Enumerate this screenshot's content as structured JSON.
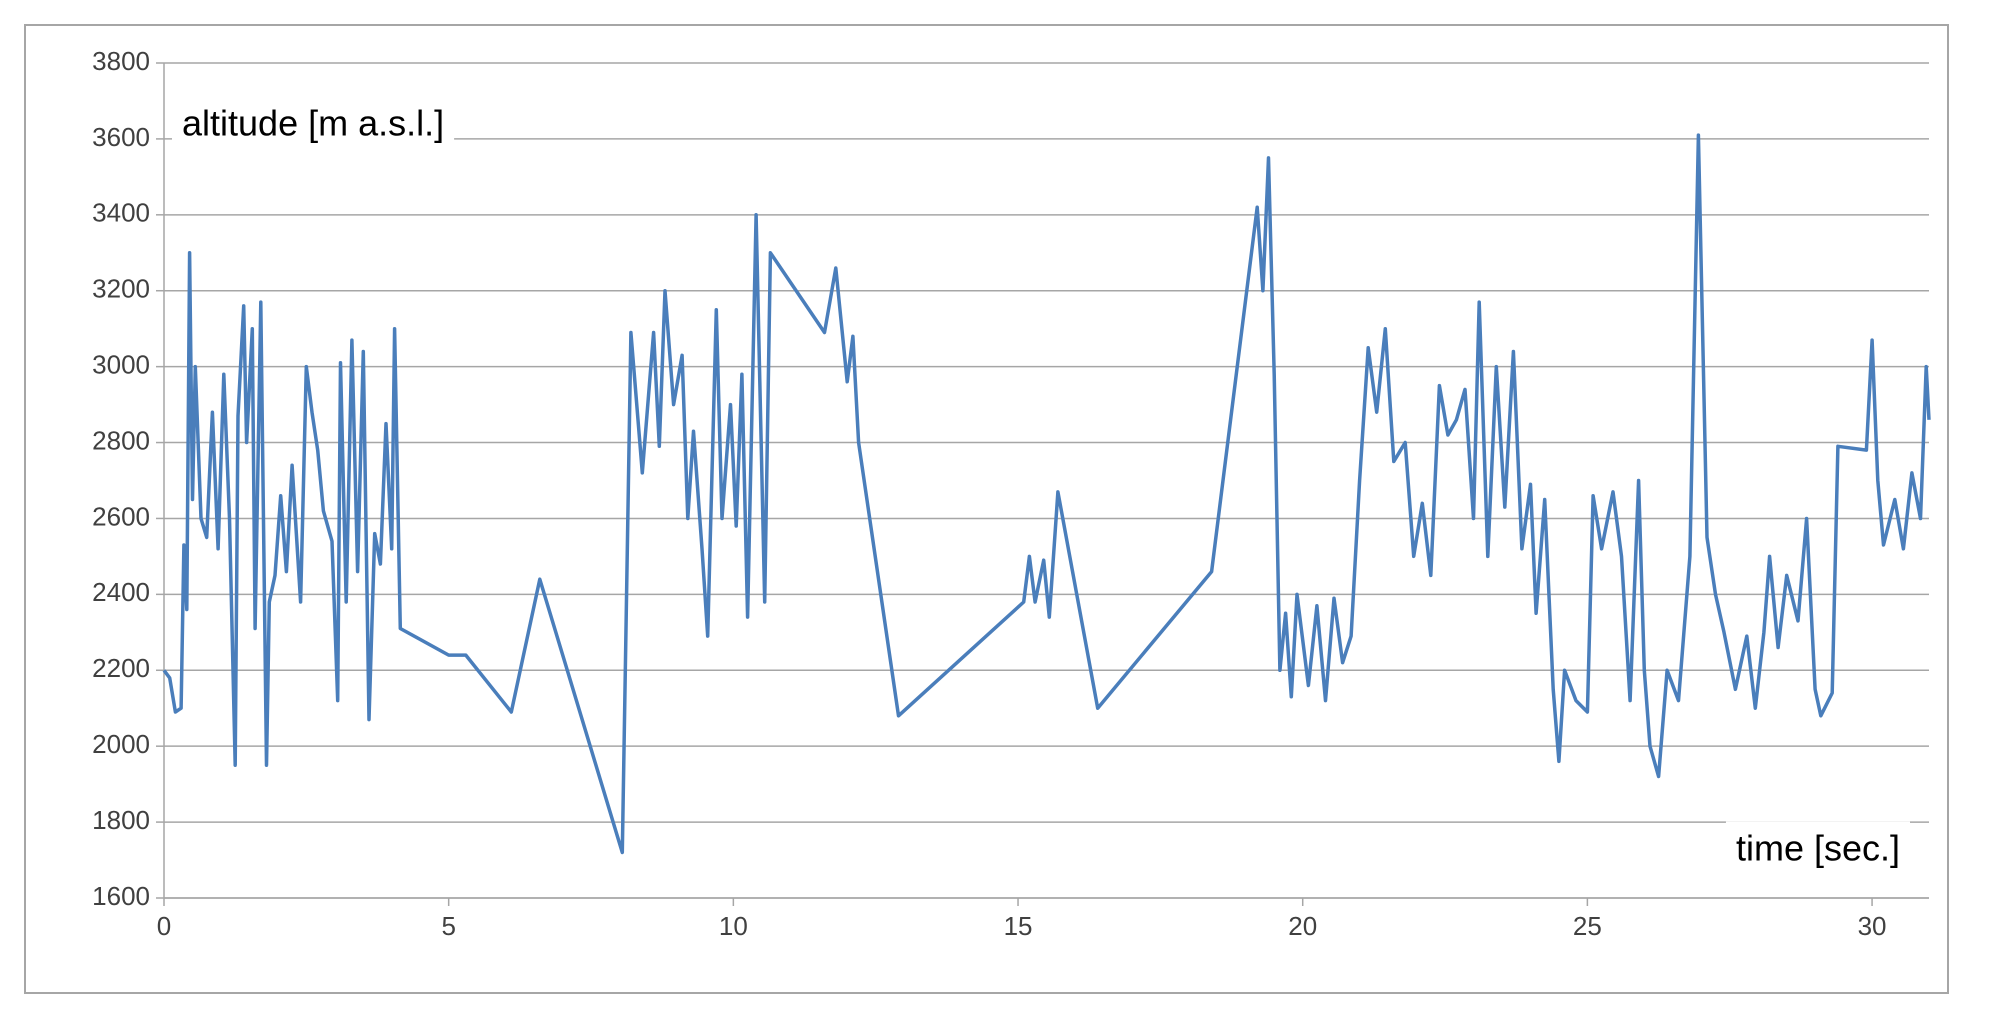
{
  "chart_data": {
    "type": "line",
    "y_label": "altitude [m a.s.l.]",
    "x_label": "time  [sec.]",
    "color": "#4a7ebb",
    "grid": true,
    "xlim": [
      0,
      31
    ],
    "xticks": [
      0,
      5,
      10,
      15,
      20,
      25,
      30
    ],
    "ylim": [
      1600,
      3800
    ],
    "yticks": [
      1600,
      1800,
      2000,
      2200,
      2400,
      2600,
      2800,
      3000,
      3200,
      3400,
      3600,
      3800
    ],
    "x": [
      0,
      0.1,
      0.2,
      0.3,
      0.35,
      0.4,
      0.45,
      0.5,
      0.55,
      0.65,
      0.75,
      0.85,
      0.95,
      1.05,
      1.15,
      1.25,
      1.3,
      1.4,
      1.45,
      1.55,
      1.6,
      1.7,
      1.8,
      1.85,
      1.95,
      2.05,
      2.15,
      2.25,
      2.4,
      2.5,
      2.6,
      2.7,
      2.8,
      2.95,
      3.05,
      3.1,
      3.2,
      3.3,
      3.4,
      3.5,
      3.6,
      3.7,
      3.8,
      3.9,
      4.0,
      4.05,
      4.15,
      5.0,
      5.3,
      6.1,
      6.6,
      8.05,
      8.2,
      8.4,
      8.6,
      8.7,
      8.8,
      8.95,
      9.1,
      9.2,
      9.3,
      9.45,
      9.55,
      9.7,
      9.8,
      9.95,
      10.05,
      10.15,
      10.25,
      10.4,
      10.55,
      10.65,
      11.6,
      11.8,
      12.0,
      12.1,
      12.2,
      12.9,
      15.1,
      15.2,
      15.3,
      15.45,
      15.55,
      15.7,
      16.4,
      18.4,
      19.2,
      19.3,
      19.4,
      19.5,
      19.6,
      19.7,
      19.8,
      19.9,
      20.1,
      20.25,
      20.4,
      20.55,
      20.7,
      20.85,
      21.0,
      21.15,
      21.3,
      21.45,
      21.6,
      21.8,
      21.95,
      22.1,
      22.25,
      22.4,
      22.55,
      22.7,
      22.85,
      23.0,
      23.1,
      23.25,
      23.4,
      23.55,
      23.7,
      23.85,
      24.0,
      24.1,
      24.25,
      24.4,
      24.5,
      24.6,
      24.8,
      25.0,
      25.1,
      25.25,
      25.45,
      25.6,
      25.75,
      25.9,
      26.0,
      26.1,
      26.25,
      26.4,
      26.6,
      26.8,
      26.95,
      27.1,
      27.25,
      27.4,
      27.6,
      27.8,
      27.95,
      28.1,
      28.2,
      28.35,
      28.5,
      28.7,
      28.85,
      29.0,
      29.1,
      29.3,
      29.4,
      29.9,
      30.0,
      30.1,
      30.2,
      30.4,
      30.55,
      30.7,
      30.85,
      30.95,
      31.0
    ],
    "values": [
      2200,
      2180,
      2090,
      2100,
      2530,
      2360,
      3300,
      2650,
      3000,
      2600,
      2550,
      2880,
      2520,
      2980,
      2600,
      1950,
      2870,
      3160,
      2800,
      3100,
      2310,
      3170,
      1950,
      2380,
      2450,
      2660,
      2460,
      2740,
      2380,
      3000,
      2880,
      2780,
      2620,
      2540,
      2120,
      3010,
      2380,
      3070,
      2460,
      3040,
      2070,
      2560,
      2480,
      2850,
      2520,
      3100,
      2310,
      2240,
      2240,
      2090,
      2440,
      1720,
      3090,
      2720,
      3090,
      2790,
      3200,
      2900,
      3030,
      2600,
      2830,
      2520,
      2290,
      3150,
      2600,
      2900,
      2580,
      2980,
      2340,
      3400,
      2380,
      3300,
      3090,
      3260,
      2960,
      3080,
      2800,
      2080,
      2380,
      2500,
      2380,
      2490,
      2340,
      2670,
      2100,
      2460,
      3420,
      3200,
      3550,
      2980,
      2200,
      2350,
      2130,
      2400,
      2160,
      2370,
      2120,
      2390,
      2220,
      2290,
      2700,
      3050,
      2880,
      3100,
      2750,
      2800,
      2500,
      2640,
      2450,
      2950,
      2820,
      2860,
      2940,
      2600,
      3170,
      2500,
      3000,
      2630,
      3040,
      2520,
      2690,
      2350,
      2650,
      2150,
      1960,
      2200,
      2120,
      2090,
      2660,
      2520,
      2670,
      2500,
      2120,
      2700,
      2200,
      2000,
      1920,
      2200,
      2120,
      2500,
      3610,
      2550,
      2400,
      2300,
      2150,
      2290,
      2100,
      2300,
      2500,
      2260,
      2450,
      2330,
      2600,
      2150,
      2080,
      2140,
      2790,
      2780,
      3070,
      2700,
      2530,
      2650,
      2520,
      2720,
      2600,
      3000,
      2860
    ]
  }
}
